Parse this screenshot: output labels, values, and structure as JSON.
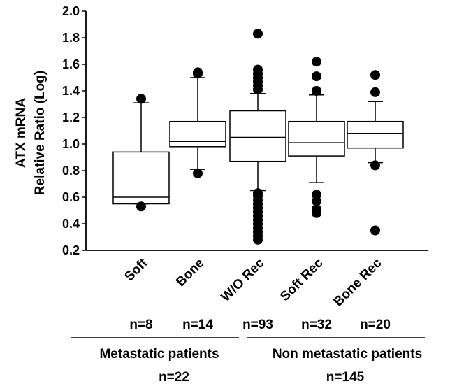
{
  "chart_data": {
    "type": "box",
    "ylabel_line1": "ATX mRNA",
    "ylabel_line2": "Relative Ratio (Log)",
    "ylim": [
      0.2,
      2.0
    ],
    "yticks": [
      "0.2",
      "0.4",
      "0.6",
      "0.8",
      "1.0",
      "1.2",
      "1.4",
      "1.6",
      "1.8",
      "2.0"
    ],
    "categories": [
      "Soft",
      "Bone",
      "W/O Rec",
      "Soft Rec",
      "Bone Rec"
    ],
    "counts": [
      "n=8",
      "n=14",
      "n=93",
      "n=32",
      "n=20"
    ],
    "groups": [
      {
        "label": "Metastatic patients",
        "total": "n=22"
      },
      {
        "label": "Non metastatic patients",
        "total": "n=145"
      }
    ],
    "boxes": [
      {
        "category": "Soft",
        "whisker_low": 0.55,
        "q1": 0.55,
        "median": 0.6,
        "q3": 0.94,
        "whisker_high": 1.31,
        "outliers": [
          0.53,
          1.34
        ]
      },
      {
        "category": "Bone",
        "whisker_low": 0.81,
        "q1": 0.98,
        "median": 1.02,
        "q3": 1.17,
        "whisker_high": 1.5,
        "outliers": [
          0.78,
          1.53,
          1.54
        ]
      },
      {
        "category": "W/O Rec",
        "whisker_low": 0.65,
        "q1": 0.87,
        "median": 1.05,
        "q3": 1.25,
        "whisker_high": 1.38,
        "outliers": [
          0.28,
          0.31,
          0.34,
          0.37,
          0.4,
          0.43,
          0.46,
          0.49,
          0.52,
          0.55,
          0.58,
          0.61,
          0.63,
          1.41,
          1.44,
          1.47,
          1.5,
          1.53,
          1.56,
          1.83
        ]
      },
      {
        "category": "Soft Rec",
        "whisker_low": 0.71,
        "q1": 0.91,
        "median": 1.01,
        "q3": 1.17,
        "whisker_high": 1.37,
        "outliers": [
          0.48,
          0.51,
          0.57,
          0.62,
          1.4,
          1.51,
          1.62
        ]
      },
      {
        "category": "Bone Rec",
        "whisker_low": 0.86,
        "q1": 0.97,
        "median": 1.08,
        "q3": 1.17,
        "whisker_high": 1.32,
        "outliers": [
          0.35,
          0.84,
          1.39,
          1.52
        ]
      }
    ]
  }
}
